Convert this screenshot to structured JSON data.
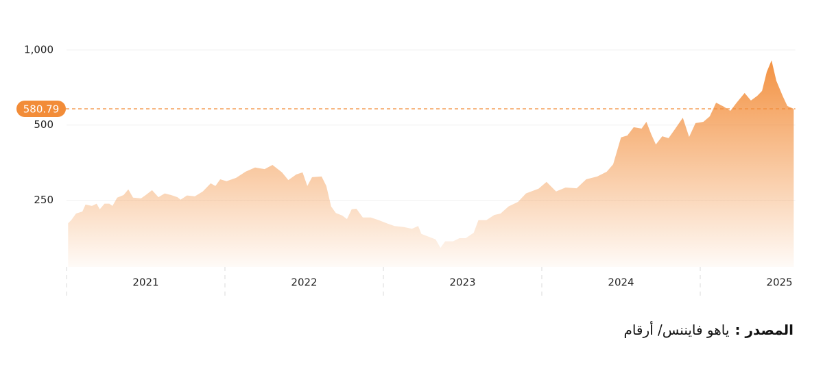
{
  "chart_data": {
    "type": "area",
    "log_y": true,
    "color": "#f28c38",
    "x": [
      2021.01,
      2021.03,
      2021.06,
      2021.1,
      2021.12,
      2021.16,
      2021.19,
      2021.21,
      2021.24,
      2021.27,
      2021.29,
      2021.32,
      2021.36,
      2021.39,
      2021.42,
      2021.47,
      2021.5,
      2021.54,
      2021.58,
      2021.62,
      2021.66,
      2021.7,
      2021.72,
      2021.76,
      2021.81,
      2021.86,
      2021.91,
      2021.94,
      2021.97,
      2022.01,
      2022.07,
      2022.13,
      2022.19,
      2022.25,
      2022.3,
      2022.36,
      2022.4,
      2022.45,
      2022.49,
      2022.52,
      2022.55,
      2022.61,
      2022.64,
      2022.67,
      2022.7,
      2022.74,
      2022.77,
      2022.8,
      2022.83,
      2022.87,
      2022.92,
      2022.97,
      2023.03,
      2023.07,
      2023.13,
      2023.18,
      2023.22,
      2023.24,
      2023.29,
      2023.33,
      2023.36,
      2023.39,
      2023.44,
      2023.48,
      2023.52,
      2023.57,
      2023.6,
      2023.65,
      2023.7,
      2023.74,
      2023.79,
      2023.85,
      2023.9,
      2023.98,
      2024.03,
      2024.09,
      2024.15,
      2024.22,
      2024.28,
      2024.35,
      2024.41,
      2024.45,
      2024.5,
      2024.54,
      2024.58,
      2024.63,
      2024.66,
      2024.69,
      2024.72,
      2024.76,
      2024.8,
      2024.84,
      2024.89,
      2024.93,
      2024.97,
      2025.02,
      2025.06,
      2025.1,
      2025.15,
      2025.19,
      2025.23,
      2025.28,
      2025.32,
      2025.36,
      2025.39,
      2025.42,
      2025.45,
      2025.48,
      2025.52,
      2025.55,
      2025.59
    ],
    "values": [
      202,
      208,
      221,
      225,
      240,
      237,
      242,
      230,
      242,
      242,
      237,
      256,
      262,
      276,
      256,
      254,
      262,
      274,
      257,
      266,
      262,
      257,
      251,
      261,
      259,
      271,
      292,
      285,
      303,
      298,
      307,
      325,
      338,
      333,
      346,
      323,
      301,
      317,
      323,
      285,
      309,
      311,
      285,
      236,
      222,
      217,
      210,
      230,
      231,
      213,
      213,
      208,
      201,
      197,
      195,
      192,
      197,
      183,
      178,
      174,
      161,
      171,
      171,
      176,
      176,
      185,
      208,
      208,
      218,
      221,
      236,
      246,
      266,
      278,
      296,
      271,
      281,
      279,
      303,
      311,
      325,
      348,
      446,
      454,
      490,
      484,
      515,
      460,
      418,
      451,
      443,
      481,
      535,
      448,
      509,
      515,
      542,
      615,
      592,
      570,
      615,
      672,
      627,
      655,
      685,
      817,
      909,
      753,
      655,
      596,
      581
    ],
    "reference_line": 580.79,
    "xlim": [
      2021,
      2025.6
    ],
    "xticks": [
      {
        "value": 2021.5,
        "label": "2021"
      },
      {
        "value": 2022.5,
        "label": "2022"
      },
      {
        "value": 2023.5,
        "label": "2023"
      },
      {
        "value": 2024.5,
        "label": "2024"
      },
      {
        "value": 2025.5,
        "label": "2025"
      }
    ],
    "xminorticks": [
      2021,
      2022,
      2023,
      2024,
      2025
    ],
    "ylim": [
      135,
      1000
    ],
    "yticks": [
      {
        "value": 1000,
        "label": "1,000"
      },
      500,
      250
    ],
    "grid": true
  },
  "source_label": "المصدر :",
  "source": "ياهو فايننس/ أرقام"
}
